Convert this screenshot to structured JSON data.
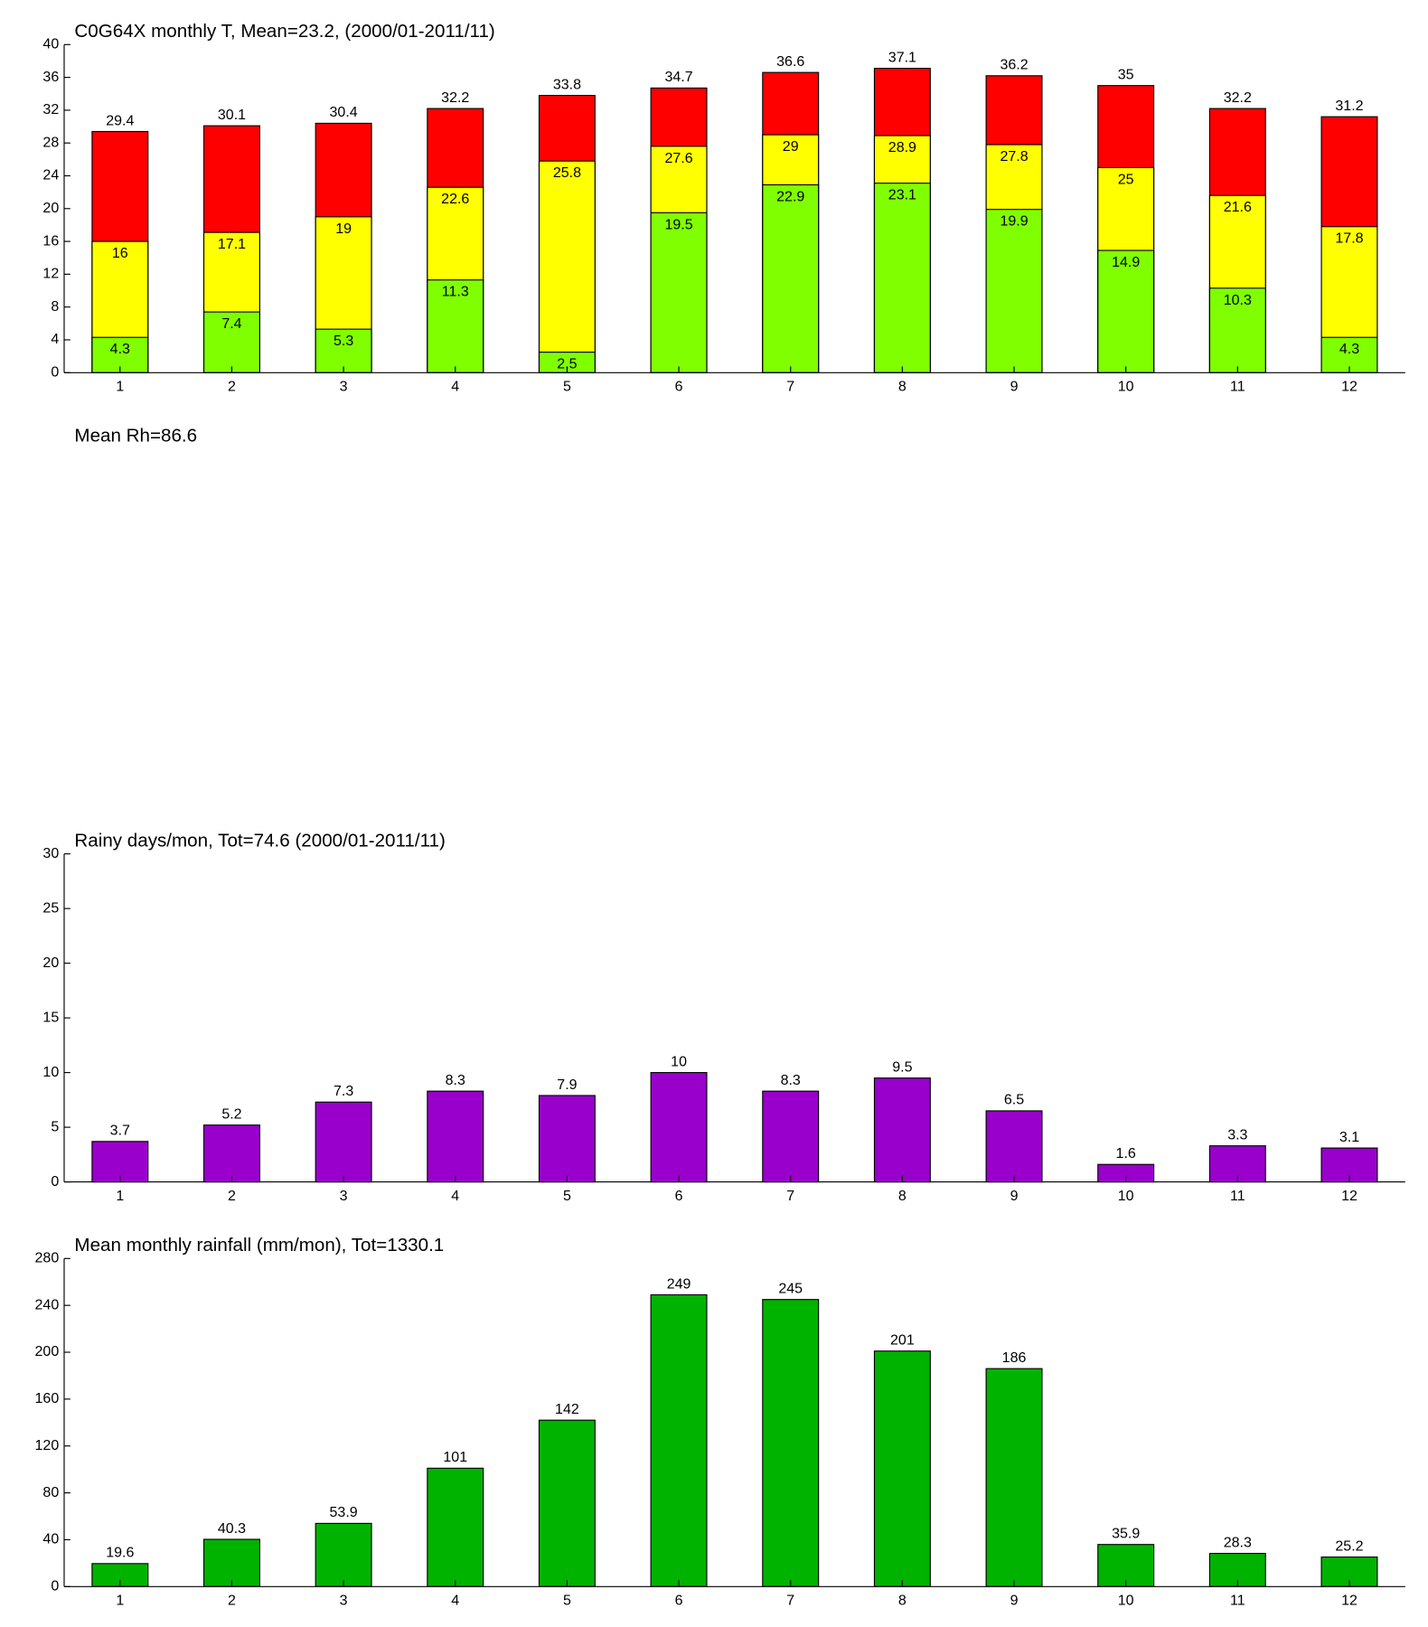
{
  "chart_data": [
    {
      "type": "bar",
      "title": "C0G64X monthly T, Mean=23.2, (2000/01-2011/11)",
      "categories": [
        1,
        2,
        3,
        4,
        5,
        6,
        7,
        8,
        9,
        10,
        11,
        12
      ],
      "series": [
        {
          "name": "max",
          "color": "#ff0000",
          "values": [
            29.4,
            30.1,
            30.4,
            32.2,
            33.8,
            34.7,
            36.6,
            37.1,
            36.2,
            35,
            32.2,
            31.2
          ]
        },
        {
          "name": "mean",
          "color": "#ffff00",
          "values": [
            16,
            17.1,
            19,
            22.6,
            25.8,
            27.6,
            29,
            28.9,
            27.8,
            25,
            21.6,
            17.8
          ]
        },
        {
          "name": "min",
          "color": "#80ff00",
          "values": [
            4.3,
            7.4,
            5.3,
            11.3,
            2.5,
            19.5,
            22.9,
            23.1,
            19.9,
            14.9,
            10.3,
            4.3
          ]
        }
      ],
      "ylim": [
        0,
        40
      ],
      "yticks": [
        0,
        4,
        8,
        12,
        16,
        20,
        24,
        28,
        32,
        36,
        40
      ]
    },
    {
      "type": "bar",
      "title": "Mean Rh=86.6"
    },
    {
      "type": "bar",
      "title": "Rainy days/mon, Tot=74.6 (2000/01-2011/11)",
      "categories": [
        1,
        2,
        3,
        4,
        5,
        6,
        7,
        8,
        9,
        10,
        11,
        12
      ],
      "series": [
        {
          "name": "rainy days",
          "color": "#9900cc",
          "values": [
            3.7,
            5.2,
            7.3,
            8.3,
            7.9,
            10,
            8.3,
            9.5,
            6.5,
            1.6,
            3.3,
            3.1
          ]
        }
      ],
      "ylim": [
        0,
        30
      ],
      "yticks": [
        0,
        5,
        10,
        15,
        20,
        25,
        30
      ]
    },
    {
      "type": "bar",
      "title": "Mean monthly rainfall (mm/mon), Tot=1330.1",
      "categories": [
        1,
        2,
        3,
        4,
        5,
        6,
        7,
        8,
        9,
        10,
        11,
        12
      ],
      "series": [
        {
          "name": "rainfall",
          "color": "#00b300",
          "values": [
            19.6,
            40.3,
            53.9,
            101,
            142,
            249,
            245,
            201,
            186,
            35.9,
            28.3,
            25.2
          ]
        }
      ],
      "ylim": [
        0,
        280
      ],
      "yticks": [
        0,
        40,
        80,
        120,
        160,
        200,
        240,
        280
      ]
    }
  ]
}
